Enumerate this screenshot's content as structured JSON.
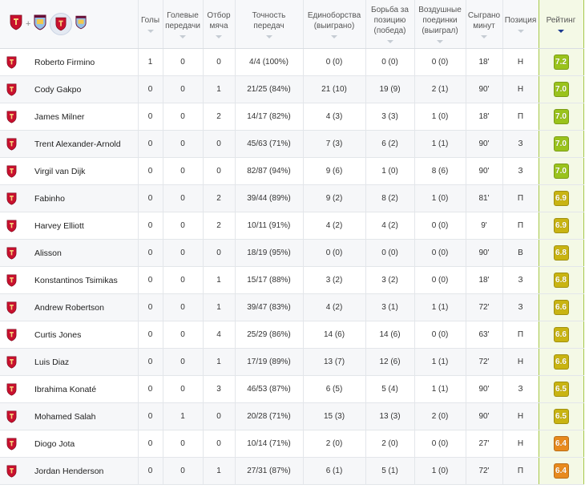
{
  "header": {
    "goals": "Голы",
    "assists": "Голевые передачи",
    "tackles": "Отбор мяча",
    "pass_accuracy": "Точность передач",
    "duels": "Единоборства (выиграно)",
    "position_battles": "Борьба за позицию (победа)",
    "aerial": "Воздушные поединки (выиграл)",
    "minutes": "Сыграно минут",
    "position": "Позиция",
    "rating": "Рейтинг",
    "plus": "+"
  },
  "icons": {
    "home_crest": "liverpool-crest-icon",
    "away_crest": "aston-villa-crest-icon",
    "sort": "sort-arrow-icon"
  },
  "colors": {
    "rating_high": "#9ac31c",
    "rating_mid": "#c9b412",
    "rating_low": "#e88a1e",
    "accent": "#1b3a8f"
  },
  "players": [
    {
      "name": "Roberto Firmino",
      "goals": "1",
      "assists": "0",
      "tackles": "0",
      "passes": "4/4 (100%)",
      "duels": "0 (0)",
      "battles": "0 (0)",
      "aerial": "0 (0)",
      "minutes": "18'",
      "position": "Н",
      "rating": "7.2",
      "tier": "high"
    },
    {
      "name": "Cody Gakpo",
      "goals": "0",
      "assists": "0",
      "tackles": "1",
      "passes": "21/25 (84%)",
      "duels": "21 (10)",
      "battles": "19 (9)",
      "aerial": "2 (1)",
      "minutes": "90'",
      "position": "Н",
      "rating": "7.0",
      "tier": "high"
    },
    {
      "name": "James Milner",
      "goals": "0",
      "assists": "0",
      "tackles": "2",
      "passes": "14/17 (82%)",
      "duels": "4 (3)",
      "battles": "3 (3)",
      "aerial": "1 (0)",
      "minutes": "18'",
      "position": "П",
      "rating": "7.0",
      "tier": "high"
    },
    {
      "name": "Trent Alexander-Arnold",
      "goals": "0",
      "assists": "0",
      "tackles": "0",
      "passes": "45/63 (71%)",
      "duels": "7 (3)",
      "battles": "6 (2)",
      "aerial": "1 (1)",
      "minutes": "90'",
      "position": "З",
      "rating": "7.0",
      "tier": "high"
    },
    {
      "name": "Virgil van Dijk",
      "goals": "0",
      "assists": "0",
      "tackles": "0",
      "passes": "82/87 (94%)",
      "duels": "9 (6)",
      "battles": "1 (0)",
      "aerial": "8 (6)",
      "minutes": "90'",
      "position": "З",
      "rating": "7.0",
      "tier": "high"
    },
    {
      "name": "Fabinho",
      "goals": "0",
      "assists": "0",
      "tackles": "2",
      "passes": "39/44 (89%)",
      "duels": "9 (2)",
      "battles": "8 (2)",
      "aerial": "1 (0)",
      "minutes": "81'",
      "position": "П",
      "rating": "6.9",
      "tier": "mid"
    },
    {
      "name": "Harvey Elliott",
      "goals": "0",
      "assists": "0",
      "tackles": "2",
      "passes": "10/11 (91%)",
      "duels": "4 (2)",
      "battles": "4 (2)",
      "aerial": "0 (0)",
      "minutes": "9'",
      "position": "П",
      "rating": "6.9",
      "tier": "mid"
    },
    {
      "name": "Alisson",
      "goals": "0",
      "assists": "0",
      "tackles": "0",
      "passes": "18/19 (95%)",
      "duels": "0 (0)",
      "battles": "0 (0)",
      "aerial": "0 (0)",
      "minutes": "90'",
      "position": "В",
      "rating": "6.8",
      "tier": "mid"
    },
    {
      "name": "Konstantinos Tsimikas",
      "goals": "0",
      "assists": "0",
      "tackles": "1",
      "passes": "15/17 (88%)",
      "duels": "3 (2)",
      "battles": "3 (2)",
      "aerial": "0 (0)",
      "minutes": "18'",
      "position": "З",
      "rating": "6.8",
      "tier": "mid"
    },
    {
      "name": "Andrew Robertson",
      "goals": "0",
      "assists": "0",
      "tackles": "1",
      "passes": "39/47 (83%)",
      "duels": "4 (2)",
      "battles": "3 (1)",
      "aerial": "1 (1)",
      "minutes": "72'",
      "position": "З",
      "rating": "6.6",
      "tier": "mid"
    },
    {
      "name": "Curtis Jones",
      "goals": "0",
      "assists": "0",
      "tackles": "4",
      "passes": "25/29 (86%)",
      "duels": "14 (6)",
      "battles": "14 (6)",
      "aerial": "0 (0)",
      "minutes": "63'",
      "position": "П",
      "rating": "6.6",
      "tier": "mid"
    },
    {
      "name": "Luis Diaz",
      "goals": "0",
      "assists": "0",
      "tackles": "1",
      "passes": "17/19 (89%)",
      "duels": "13 (7)",
      "battles": "12 (6)",
      "aerial": "1 (1)",
      "minutes": "72'",
      "position": "Н",
      "rating": "6.6",
      "tier": "mid"
    },
    {
      "name": "Ibrahima Konaté",
      "goals": "0",
      "assists": "0",
      "tackles": "3",
      "passes": "46/53 (87%)",
      "duels": "6 (5)",
      "battles": "5 (4)",
      "aerial": "1 (1)",
      "minutes": "90'",
      "position": "З",
      "rating": "6.5",
      "tier": "mid"
    },
    {
      "name": "Mohamed Salah",
      "goals": "0",
      "assists": "1",
      "tackles": "0",
      "passes": "20/28 (71%)",
      "duels": "15 (3)",
      "battles": "13 (3)",
      "aerial": "2 (0)",
      "minutes": "90'",
      "position": "Н",
      "rating": "6.5",
      "tier": "mid"
    },
    {
      "name": "Diogo Jota",
      "goals": "0",
      "assists": "0",
      "tackles": "0",
      "passes": "10/14 (71%)",
      "duels": "2 (0)",
      "battles": "2 (0)",
      "aerial": "0 (0)",
      "minutes": "27'",
      "position": "Н",
      "rating": "6.4",
      "tier": "low"
    },
    {
      "name": "Jordan Henderson",
      "goals": "0",
      "assists": "0",
      "tackles": "1",
      "passes": "27/31 (87%)",
      "duels": "6 (1)",
      "battles": "5 (1)",
      "aerial": "1 (0)",
      "minutes": "72'",
      "position": "П",
      "rating": "6.4",
      "tier": "low"
    }
  ]
}
